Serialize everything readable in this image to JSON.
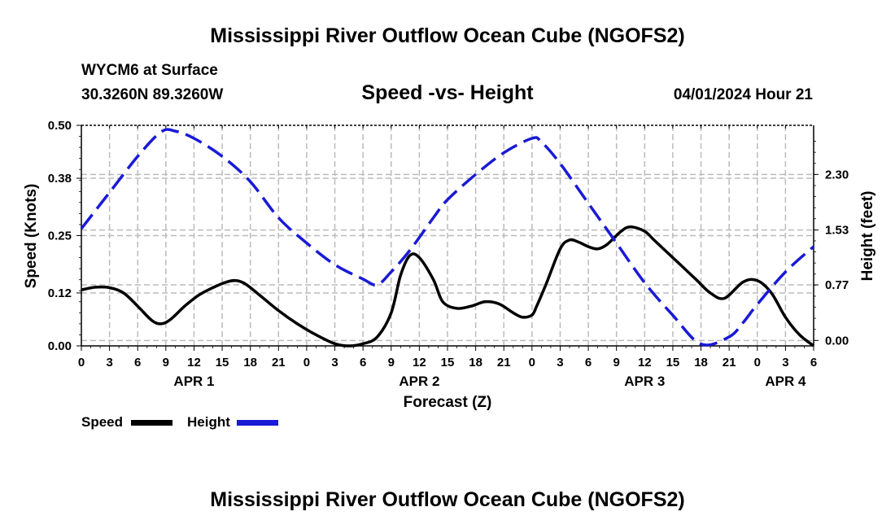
{
  "page": {
    "title": "Mississippi River Outflow Ocean Cube (NGOFS2)",
    "station": "WYCM6 at Surface",
    "coords": "30.3260N  89.3260W",
    "subtitle": "Speed -vs- Height",
    "datetime": "04/01/2024 Hour 21",
    "footer_title": "Mississippi River Outflow Ocean Cube (NGOFS2)"
  },
  "legend": {
    "speed_label": "Speed",
    "height_label": "Height"
  },
  "colors": {
    "speed": "#000000",
    "height": "#1a1ad6",
    "grid": "#bbbbbb"
  },
  "chart_data": {
    "type": "line",
    "title": "Speed -vs- Height",
    "xlabel": "Forecast (Z)",
    "ylabel": "Speed (Knots)",
    "y2label": "Height (feet)",
    "x_unit": "hours since APR 1 00Z",
    "xlim": [
      0,
      78
    ],
    "ylim": [
      0,
      0.5
    ],
    "y2lim": [
      -0.075,
      2.98
    ],
    "x_ticks": [
      0,
      3,
      6,
      9,
      12,
      15,
      18,
      21,
      24,
      27,
      30,
      33,
      36,
      39,
      42,
      45,
      48,
      51,
      54,
      57,
      60,
      63,
      66,
      69,
      72,
      75,
      78
    ],
    "x_tick_labels": [
      "0",
      "3",
      "6",
      "9",
      "12",
      "15",
      "18",
      "21",
      "0",
      "3",
      "6",
      "9",
      "12",
      "15",
      "18",
      "21",
      "0",
      "3",
      "6",
      "9",
      "12",
      "15",
      "18",
      "21",
      "0",
      "3",
      "6"
    ],
    "day_labels": [
      {
        "x": 12,
        "label": "APR 1"
      },
      {
        "x": 36,
        "label": "APR 2"
      },
      {
        "x": 60,
        "label": "APR 3"
      },
      {
        "x": 75,
        "label": "APR 4"
      }
    ],
    "y_ticks": [
      0.0,
      0.12,
      0.25,
      0.38,
      0.5
    ],
    "y_tick_labels": [
      "0.00",
      "0.12",
      "0.25",
      "0.38",
      "0.50"
    ],
    "y2_ticks": [
      0.0,
      0.77,
      1.53,
      2.3
    ],
    "y2_tick_labels": [
      "0.00",
      "0.77",
      "1.53",
      "2.30"
    ],
    "grid": true,
    "series": [
      {
        "name": "Speed",
        "axis": "left",
        "style": "solid",
        "x": [
          0,
          1.5,
          3,
          4.5,
          6,
          7.5,
          8.5,
          9.5,
          11,
          12.5,
          14,
          15.5,
          16.5,
          17.5,
          19,
          21,
          23,
          25,
          27,
          28.5,
          30,
          31.5,
          33,
          34,
          35,
          36,
          37.5,
          38.5,
          40,
          41.5,
          43,
          44.5,
          46,
          47,
          48,
          48.5,
          49.5,
          51,
          52,
          53,
          54,
          55,
          56,
          57.5,
          58.5,
          60,
          61,
          62.5,
          64,
          65.5,
          67,
          68.5,
          70.5,
          72,
          73.5,
          75,
          76.5,
          78
        ],
        "values": [
          0.127,
          0.133,
          0.132,
          0.12,
          0.09,
          0.058,
          0.05,
          0.06,
          0.09,
          0.115,
          0.132,
          0.145,
          0.148,
          0.14,
          0.115,
          0.08,
          0.05,
          0.025,
          0.005,
          0.0,
          0.005,
          0.02,
          0.075,
          0.16,
          0.205,
          0.2,
          0.15,
          0.1,
          0.085,
          0.09,
          0.1,
          0.095,
          0.075,
          0.065,
          0.07,
          0.09,
          0.14,
          0.22,
          0.24,
          0.235,
          0.225,
          0.22,
          0.23,
          0.26,
          0.27,
          0.26,
          0.24,
          0.21,
          0.18,
          0.15,
          0.12,
          0.108,
          0.145,
          0.148,
          0.12,
          0.065,
          0.025,
          0.0
        ]
      },
      {
        "name": "Height",
        "axis": "right",
        "style": "dashed",
        "x": [
          0,
          3,
          6,
          8.5,
          10,
          12,
          15,
          18,
          21,
          24,
          27,
          30,
          31.5,
          33,
          35,
          37.5,
          39,
          42,
          45,
          48,
          49,
          51,
          54,
          57,
          60,
          63,
          66,
          69,
          70.5,
          72,
          75,
          78
        ],
        "values": [
          1.55,
          2.05,
          2.55,
          2.89,
          2.9,
          2.8,
          2.55,
          2.2,
          1.7,
          1.35,
          1.05,
          0.85,
          0.77,
          0.95,
          1.25,
          1.7,
          1.95,
          2.3,
          2.6,
          2.8,
          2.75,
          2.45,
          1.9,
          1.35,
          0.8,
          0.35,
          -0.05,
          0.05,
          0.25,
          0.5,
          0.95,
          1.3
        ]
      }
    ]
  }
}
